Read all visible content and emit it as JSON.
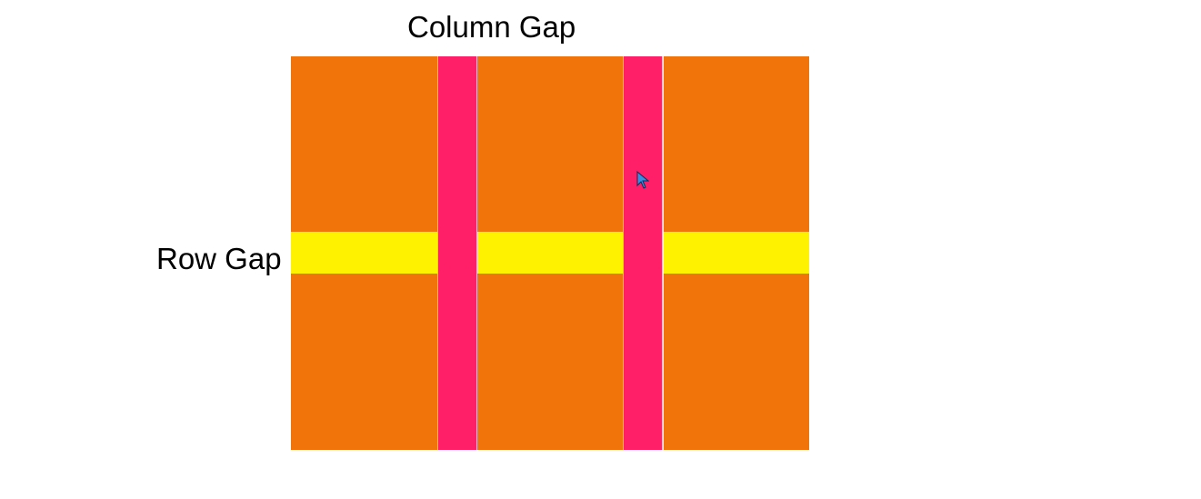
{
  "labels": {
    "column_gap": "Column Gap",
    "row_gap": "Row Gap"
  },
  "colors": {
    "grid_item": "#f07409",
    "column_gap": "#ff1f68",
    "row_gap": "#fff200",
    "background": "#ffffff",
    "cursor_fill": "#3b8fe0",
    "cursor_stroke": "#0b2c57"
  },
  "icons": {
    "cursor": "mouse-pointer-icon"
  }
}
